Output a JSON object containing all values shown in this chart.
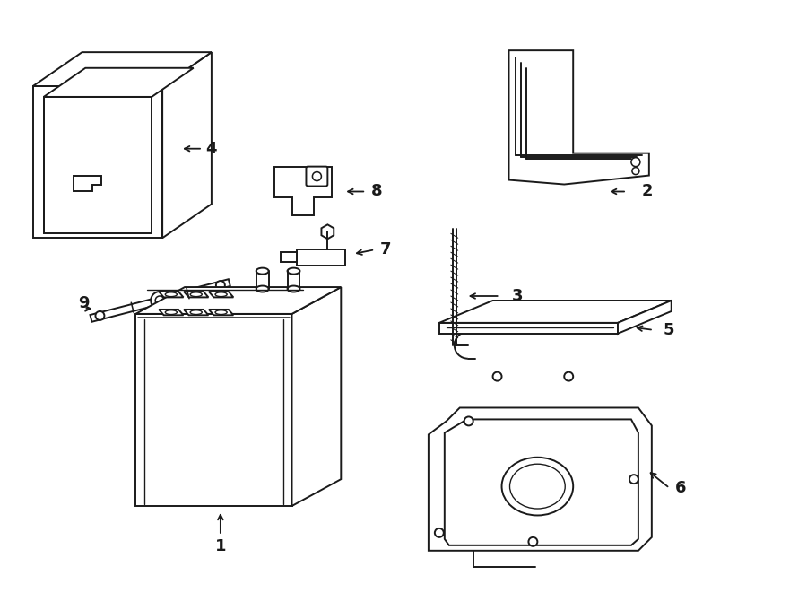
{
  "background_color": "#ffffff",
  "line_color": "#1a1a1a",
  "line_width": 1.4,
  "label_fontsize": 13,
  "fig_width": 9.0,
  "fig_height": 6.61,
  "dpi": 100
}
